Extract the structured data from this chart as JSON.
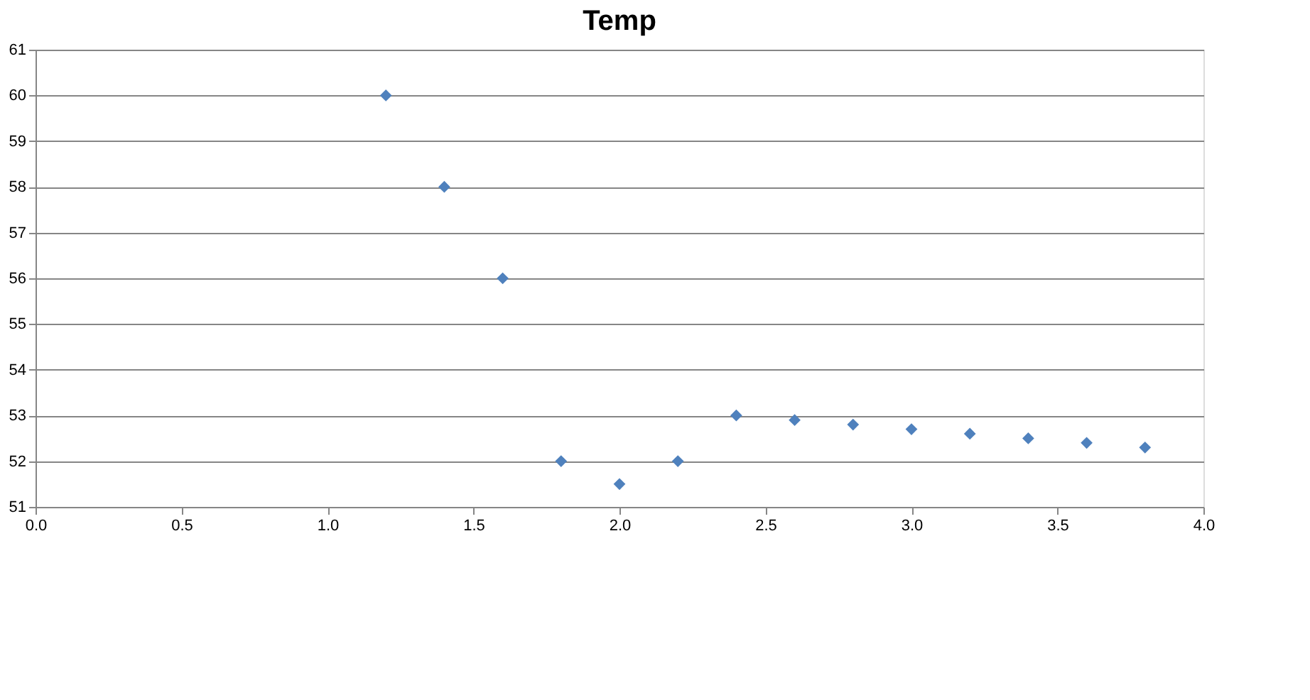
{
  "chart_data": {
    "type": "scatter",
    "title": "Temp",
    "x": [
      1.2,
      1.4,
      1.6,
      1.8,
      2.0,
      2.2,
      2.4,
      2.6,
      2.8,
      3.0,
      3.2,
      3.4,
      3.6,
      3.8
    ],
    "series": [
      {
        "color": "#4f81bd",
        "values": [
          60,
          58,
          56,
          52,
          51.5,
          52,
          53,
          52.9,
          52.8,
          52.7,
          52.6,
          52.5,
          52.4,
          52.3
        ]
      }
    ],
    "xlim": [
      0,
      4
    ],
    "xticks": [
      {
        "value": 0,
        "label": "0.0"
      },
      {
        "value": 0.5,
        "label": "0.5"
      },
      {
        "value": 1,
        "label": "1.0"
      },
      {
        "value": 1.5,
        "label": "1.5"
      },
      {
        "value": 2,
        "label": "2.0"
      },
      {
        "value": 2.5,
        "label": "2.5"
      },
      {
        "value": 3,
        "label": "3.0"
      },
      {
        "value": 3.5,
        "label": "3.5"
      },
      {
        "value": 4,
        "label": "4.0"
      }
    ],
    "ylim": [
      51,
      61
    ],
    "yticks": [
      51,
      52,
      53,
      54,
      55,
      56,
      57,
      58,
      59,
      60,
      61
    ],
    "grid": "y",
    "marker": "diamond"
  }
}
